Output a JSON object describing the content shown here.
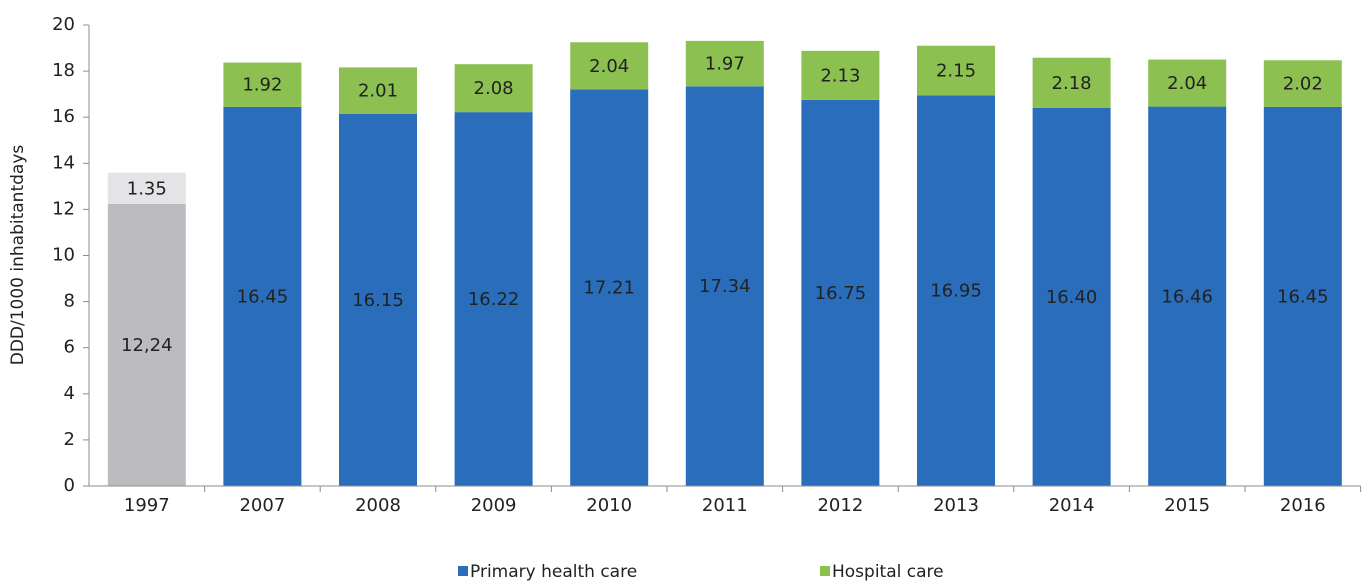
{
  "chart_data": {
    "type": "stacked_bar",
    "y_label": "DDD/1000 inhabitantdays",
    "categories": [
      "1997",
      "2007",
      "2008",
      "2009",
      "2010",
      "2011",
      "2012",
      "2013",
      "2014",
      "2015",
      "2016"
    ],
    "series": [
      {
        "name": "Primary health care",
        "color": "#2a6ebb",
        "colors": [
          "#bcbcc0",
          "#2a6ebb",
          "#2a6ebb",
          "#2a6ebb",
          "#2a6ebb",
          "#2a6ebb",
          "#2a6ebb",
          "#2a6ebb",
          "#2a6ebb",
          "#2a6ebb",
          "#2a6ebb"
        ],
        "values": [
          12.24,
          16.45,
          16.15,
          16.22,
          17.21,
          17.34,
          16.75,
          16.95,
          16.4,
          16.46,
          16.45
        ],
        "value_labels": [
          "12,24",
          "16.45",
          "16.15",
          "16.22",
          "17.21",
          "17.34",
          "16.75",
          "16.95",
          "16.40",
          "16.46",
          "16.45"
        ]
      },
      {
        "name": "Hospital care",
        "color": "#8cc152",
        "colors": [
          "#e4e4e6",
          "#8cc152",
          "#8cc152",
          "#8cc152",
          "#8cc152",
          "#8cc152",
          "#8cc152",
          "#8cc152",
          "#8cc152",
          "#8cc152",
          "#8cc152"
        ],
        "values": [
          1.35,
          1.92,
          2.01,
          2.08,
          2.04,
          1.97,
          2.13,
          2.15,
          2.18,
          2.04,
          2.02
        ]
      }
    ],
    "ylim": [
      0,
      20
    ],
    "yticks": [
      0,
      2,
      4,
      6,
      8,
      10,
      12,
      14,
      16,
      18,
      20
    ],
    "grid": false,
    "legend": "bottom"
  }
}
